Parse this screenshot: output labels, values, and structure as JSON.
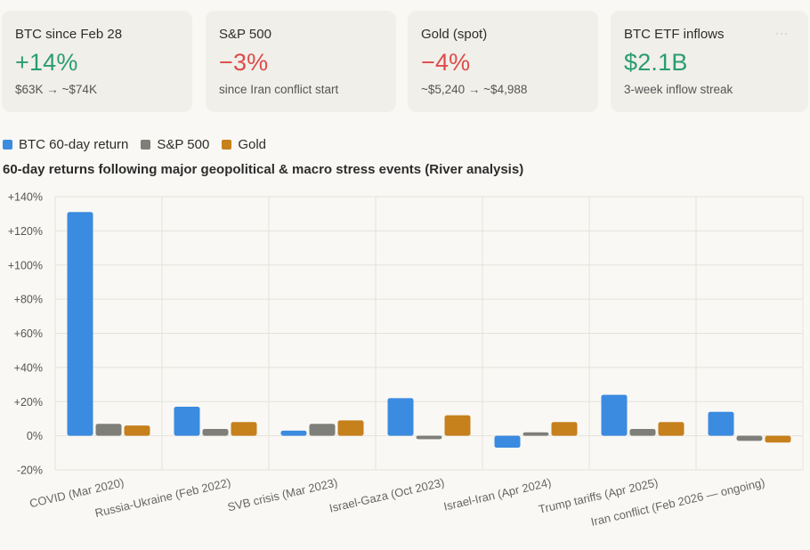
{
  "cards": [
    {
      "label": "BTC since Feb 28",
      "value": "+14%",
      "sub": "$63K → ~$74K",
      "tone": "pos"
    },
    {
      "label": "S&P 500",
      "value": "−3%",
      "sub": "since Iran conflict start",
      "tone": "neg"
    },
    {
      "label": "Gold (spot)",
      "value": "−4%",
      "sub": "~$5,240 → ~$4,988",
      "tone": "neg"
    },
    {
      "label": "BTC ETF inflows",
      "value": "$2.1B",
      "sub": "3-week inflow streak",
      "tone": "pos",
      "more": "···"
    }
  ],
  "legend": [
    {
      "name": "BTC 60-day return",
      "color": "#3b8be0"
    },
    {
      "name": "S&P 500",
      "color": "#7f7f7a"
    },
    {
      "name": "Gold",
      "color": "#c6801c"
    }
  ],
  "chart_data": {
    "type": "bar",
    "title": "60-day returns following major geopolitical & macro stress events (River analysis)",
    "categories": [
      "COVID (Mar 2020)",
      "Russia-Ukraine (Feb 2022)",
      "SVB crisis (Mar 2023)",
      "Israel-Gaza (Oct 2023)",
      "Israel-Iran (Apr 2024)",
      "Trump tariffs (Apr 2025)",
      "Iran conflict (Feb 2026 — ongoing)"
    ],
    "series": [
      {
        "name": "BTC 60-day return",
        "color": "#3b8be0",
        "values": [
          131,
          17,
          3,
          22,
          -7,
          24,
          14
        ]
      },
      {
        "name": "S&P 500",
        "color": "#7f7f7a",
        "values": [
          7,
          4,
          7,
          -2,
          2,
          4,
          -3
        ]
      },
      {
        "name": "Gold",
        "color": "#c6801c",
        "values": [
          6,
          8,
          9,
          12,
          8,
          8,
          -4
        ]
      }
    ],
    "ylim": [
      -20,
      140
    ],
    "yticks": [
      -20,
      0,
      20,
      40,
      60,
      80,
      100,
      120,
      140
    ],
    "ytick_labels": [
      "-20%",
      "0%",
      "+20%",
      "+40%",
      "+60%",
      "+80%",
      "+100%",
      "+120%",
      "+140%"
    ],
    "xlabel": "",
    "ylabel": "",
    "grid": true,
    "legend_position": "top-left"
  }
}
